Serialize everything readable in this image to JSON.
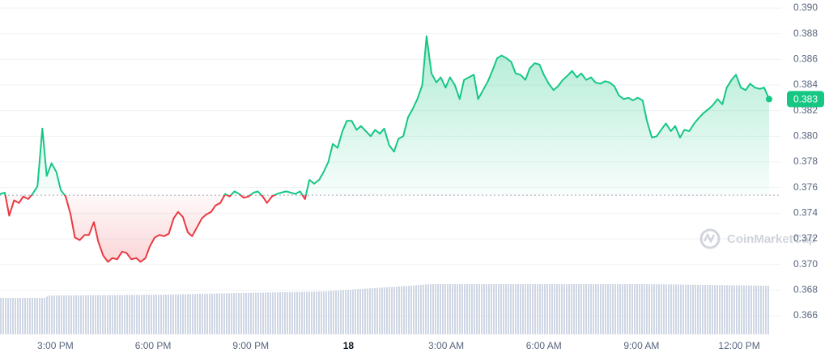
{
  "chart_data": {
    "type": "line",
    "x": [
      798,
      807,
      815,
      824,
      833,
      841,
      850,
      858,
      867,
      876,
      884,
      893,
      902,
      910,
      919,
      928,
      936,
      945,
      954,
      962,
      971,
      979,
      988,
      997,
      1005,
      1014,
      1023,
      1031,
      1040,
      1049,
      1057,
      1066,
      1074,
      1083,
      1092,
      1100,
      1109,
      1118,
      1126,
      1135,
      1144,
      1152,
      1161,
      1170,
      1178,
      1187,
      1195,
      1204,
      1213,
      1221,
      1230,
      1239,
      1247,
      1256,
      1265,
      1273,
      1282,
      1290,
      1299,
      1308,
      1316,
      1325,
      1334,
      1342,
      1351,
      1360,
      1368,
      1377,
      1386,
      1394,
      1403,
      1411,
      1420,
      1429,
      1437,
      1446,
      1455,
      1463,
      1472,
      1481,
      1489,
      1498,
      1506,
      1515,
      1524,
      1532,
      1541,
      1550,
      1558,
      1567,
      1576,
      1584,
      1593,
      1602,
      1610,
      1619,
      1627,
      1636,
      1645,
      1653,
      1662,
      1671,
      1679,
      1688,
      1697,
      1705,
      1714,
      1722,
      1731,
      1740,
      1748,
      1757,
      1766,
      1774,
      1783,
      1792,
      1800,
      1809,
      1818,
      1826,
      1835,
      1843,
      1852,
      1861,
      1869,
      1878,
      1887,
      1895,
      1904,
      1913,
      1921,
      1930,
      1938,
      1947,
      1956,
      1964,
      1973,
      1982,
      1990,
      1999,
      2008,
      2016,
      2025,
      2034,
      2042,
      2051,
      2059,
      2068,
      2077,
      2085,
      2094,
      2103,
      2111,
      2120,
      2129,
      2137,
      2146,
      2154,
      2163,
      2172,
      2180,
      2189,
      2198,
      2206,
      2215
    ],
    "series": [
      {
        "color": "#16c784",
        "down_color": "#ea3943",
        "values": [
          0.3755,
          0.3756,
          0.3738,
          0.375,
          0.3748,
          0.3753,
          0.3751,
          0.3755,
          0.3761,
          0.3806,
          0.3769,
          0.3779,
          0.3772,
          0.3758,
          0.3753,
          0.3739,
          0.3721,
          0.3719,
          0.3723,
          0.3723,
          0.3733,
          0.3718,
          0.3707,
          0.3702,
          0.3705,
          0.3704,
          0.371,
          0.3709,
          0.3704,
          0.3705,
          0.3702,
          0.3705,
          0.3714,
          0.3721,
          0.3723,
          0.3722,
          0.3724,
          0.3736,
          0.3741,
          0.3737,
          0.3725,
          0.3722,
          0.3729,
          0.3736,
          0.3739,
          0.3741,
          0.3746,
          0.3748,
          0.3755,
          0.3753,
          0.3757,
          0.3755,
          0.3752,
          0.3753,
          0.3756,
          0.3757,
          0.3753,
          0.3748,
          0.3753,
          0.3755,
          0.3756,
          0.3757,
          0.3756,
          0.3755,
          0.3757,
          0.3751,
          0.3766,
          0.3763,
          0.3766,
          0.3772,
          0.378,
          0.3794,
          0.3791,
          0.3804,
          0.3812,
          0.3812,
          0.3805,
          0.3808,
          0.3804,
          0.38,
          0.3805,
          0.3802,
          0.3806,
          0.3793,
          0.3788,
          0.3798,
          0.38,
          0.3815,
          0.3821,
          0.3829,
          0.384,
          0.3878,
          0.3849,
          0.3842,
          0.3846,
          0.3838,
          0.3846,
          0.384,
          0.3829,
          0.3844,
          0.3846,
          0.3848,
          0.3829,
          0.3836,
          0.3843,
          0.3851,
          0.3861,
          0.3863,
          0.3861,
          0.3858,
          0.3849,
          0.3848,
          0.3844,
          0.3853,
          0.3857,
          0.3856,
          0.3848,
          0.3841,
          0.3836,
          0.3839,
          0.3844,
          0.3847,
          0.3851,
          0.3846,
          0.3849,
          0.3844,
          0.3846,
          0.3842,
          0.3841,
          0.3843,
          0.3842,
          0.3839,
          0.3832,
          0.3829,
          0.383,
          0.3828,
          0.383,
          0.3828,
          0.3812,
          0.3799,
          0.38,
          0.3805,
          0.381,
          0.3804,
          0.3808,
          0.3799,
          0.3805,
          0.3804,
          0.381,
          0.3814,
          0.3818,
          0.3821,
          0.3824,
          0.3829,
          0.3825,
          0.3838,
          0.3844,
          0.3848,
          0.3838,
          0.3836,
          0.3841,
          0.3838,
          0.3837,
          0.3838,
          0.3829
        ]
      }
    ],
    "reference_line": 0.3754,
    "last_label": "0.383",
    "xlim": [
      798,
      2224
    ],
    "xticks": [
      {
        "value": 900,
        "label": "3:00 PM"
      },
      {
        "value": 1080,
        "label": "6:00 PM"
      },
      {
        "value": 1260,
        "label": "9:00 PM"
      },
      {
        "value": 1440,
        "label": "18"
      },
      {
        "value": 1620,
        "label": "3:00 AM"
      },
      {
        "value": 1800,
        "label": "6:00 AM"
      },
      {
        "value": 1980,
        "label": "9:00 AM"
      },
      {
        "value": 2160,
        "label": "12:00 PM"
      }
    ],
    "ylim": [
      0.366,
      0.39
    ],
    "yticks": [
      0.366,
      0.368,
      {
        "value": 0.37,
        "label": "0.370"
      },
      0.372,
      0.374,
      0.376,
      0.378,
      {
        "value": 0.38,
        "label": "0.380"
      },
      0.382,
      0.384,
      0.386,
      0.388,
      {
        "value": 0.39,
        "label": "0.390"
      }
    ],
    "grid": true,
    "watermark": "CoinMarketCap"
  }
}
